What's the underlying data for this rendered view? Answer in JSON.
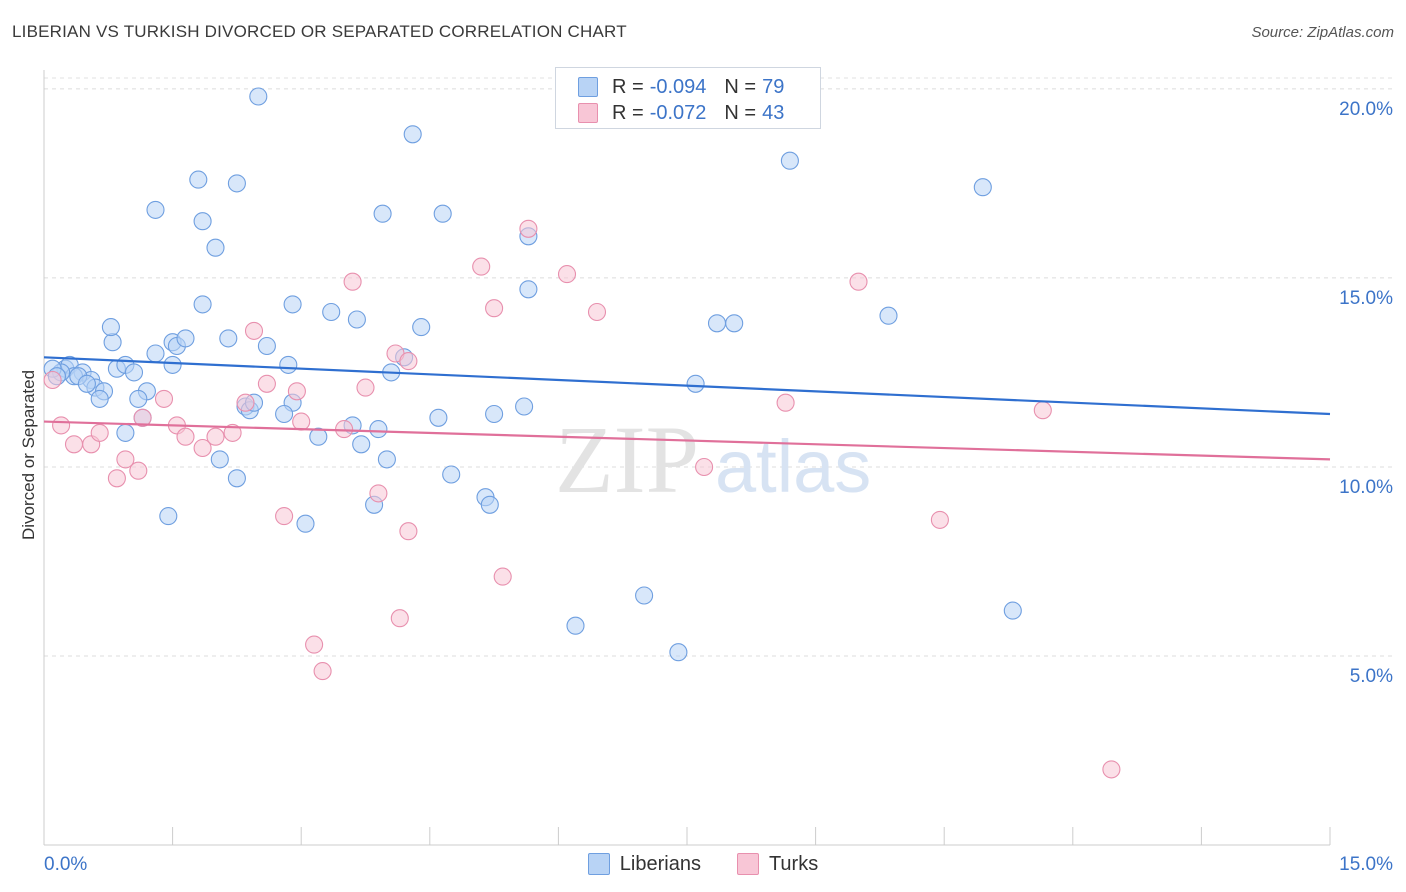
{
  "title": "LIBERIAN VS TURKISH DIVORCED OR SEPARATED CORRELATION CHART",
  "source": "Source: ZipAtlas.com",
  "watermark": {
    "zip": "ZIP",
    "atlas": "atlas"
  },
  "legend": {
    "series": [
      {
        "name": "Liberians",
        "r_label": "R =",
        "r_value": "-0.094",
        "n_label": "N =",
        "n_value": "79",
        "fill": "#b8d3f5",
        "stroke": "#6f9fe0"
      },
      {
        "name": "Turks",
        "r_label": "R =",
        "r_value": "-0.072",
        "n_label": "N =",
        "n_value": "43",
        "fill": "#f8c6d6",
        "stroke": "#e890ae"
      }
    ]
  },
  "chart_data": {
    "type": "scatter",
    "title": "LIBERIAN VS TURKISH DIVORCED OR SEPARATED CORRELATION CHART",
    "xlabel": "",
    "ylabel": "Divorced or Separated",
    "xlim": [
      0,
      15
    ],
    "ylim": [
      0,
      20.5
    ],
    "x_tick_labels": [
      "0.0%",
      "15.0%"
    ],
    "y_ticks": [
      5,
      10,
      15,
      20
    ],
    "y_tick_labels": [
      "5.0%",
      "10.0%",
      "15.0%",
      "20.0%"
    ],
    "grid": true,
    "series": [
      {
        "name": "Liberians",
        "color": "#6f9fe0",
        "trend": {
          "x": [
            0,
            15
          ],
          "y": [
            12.9,
            11.4
          ],
          "color": "#2f6fd0"
        },
        "points": [
          [
            0.25,
            12.6
          ],
          [
            0.3,
            12.7
          ],
          [
            0.45,
            12.5
          ],
          [
            0.55,
            12.3
          ],
          [
            0.6,
            12.1
          ],
          [
            0.7,
            12.0
          ],
          [
            0.35,
            12.4
          ],
          [
            0.2,
            12.5
          ],
          [
            0.65,
            11.8
          ],
          [
            0.85,
            12.6
          ],
          [
            0.95,
            12.7
          ],
          [
            1.05,
            12.5
          ],
          [
            1.2,
            12.0
          ],
          [
            1.1,
            11.8
          ],
          [
            1.15,
            11.3
          ],
          [
            0.95,
            10.9
          ],
          [
            0.8,
            13.3
          ],
          [
            0.78,
            13.7
          ],
          [
            1.3,
            13.0
          ],
          [
            1.5,
            13.3
          ],
          [
            1.55,
            13.2
          ],
          [
            1.65,
            13.4
          ],
          [
            1.5,
            12.7
          ],
          [
            1.45,
            8.7
          ],
          [
            1.3,
            16.8
          ],
          [
            1.8,
            17.6
          ],
          [
            1.85,
            16.5
          ],
          [
            2.0,
            15.8
          ],
          [
            2.25,
            17.5
          ],
          [
            2.5,
            19.8
          ],
          [
            1.85,
            14.3
          ],
          [
            2.15,
            13.4
          ],
          [
            2.35,
            11.6
          ],
          [
            2.4,
            11.5
          ],
          [
            2.45,
            11.7
          ],
          [
            2.05,
            10.2
          ],
          [
            2.25,
            9.7
          ],
          [
            2.6,
            13.2
          ],
          [
            2.85,
            12.7
          ],
          [
            2.9,
            14.3
          ],
          [
            2.9,
            11.7
          ],
          [
            2.8,
            11.4
          ],
          [
            3.2,
            10.8
          ],
          [
            3.05,
            8.5
          ],
          [
            3.35,
            14.1
          ],
          [
            3.6,
            11.1
          ],
          [
            3.7,
            10.6
          ],
          [
            3.65,
            13.9
          ],
          [
            3.9,
            11.0
          ],
          [
            4.0,
            10.2
          ],
          [
            4.05,
            12.5
          ],
          [
            4.2,
            12.9
          ],
          [
            3.85,
            9.0
          ],
          [
            3.95,
            16.7
          ],
          [
            4.3,
            18.8
          ],
          [
            4.4,
            13.7
          ],
          [
            4.6,
            11.3
          ],
          [
            4.65,
            16.7
          ],
          [
            4.75,
            9.8
          ],
          [
            5.15,
            9.2
          ],
          [
            5.2,
            9.0
          ],
          [
            5.25,
            11.4
          ],
          [
            5.6,
            11.6
          ],
          [
            5.65,
            16.1
          ],
          [
            5.65,
            14.7
          ],
          [
            6.2,
            5.8
          ],
          [
            7.0,
            6.6
          ],
          [
            7.4,
            5.1
          ],
          [
            7.6,
            12.2
          ],
          [
            7.85,
            13.8
          ],
          [
            8.05,
            13.8
          ],
          [
            8.7,
            18.1
          ],
          [
            9.85,
            14.0
          ],
          [
            10.95,
            17.4
          ],
          [
            11.3,
            6.2
          ],
          [
            0.1,
            12.6
          ],
          [
            0.15,
            12.4
          ],
          [
            0.4,
            12.4
          ],
          [
            0.5,
            12.2
          ]
        ]
      },
      {
        "name": "Turks",
        "color": "#e890ae",
        "trend": {
          "x": [
            0,
            15
          ],
          "y": [
            11.2,
            10.2
          ],
          "color": "#e0709a"
        },
        "points": [
          [
            0.1,
            12.3
          ],
          [
            0.2,
            11.1
          ],
          [
            0.35,
            10.6
          ],
          [
            0.55,
            10.6
          ],
          [
            0.65,
            10.9
          ],
          [
            0.85,
            9.7
          ],
          [
            0.95,
            10.2
          ],
          [
            1.1,
            9.9
          ],
          [
            1.15,
            11.3
          ],
          [
            1.4,
            11.8
          ],
          [
            1.55,
            11.1
          ],
          [
            1.65,
            10.8
          ],
          [
            1.85,
            10.5
          ],
          [
            2.0,
            10.8
          ],
          [
            2.2,
            10.9
          ],
          [
            2.35,
            11.7
          ],
          [
            2.45,
            13.6
          ],
          [
            2.6,
            12.2
          ],
          [
            2.8,
            8.7
          ],
          [
            2.95,
            12.0
          ],
          [
            3.0,
            11.2
          ],
          [
            3.15,
            5.3
          ],
          [
            3.25,
            4.6
          ],
          [
            3.5,
            11.0
          ],
          [
            3.6,
            14.9
          ],
          [
            3.75,
            12.1
          ],
          [
            3.9,
            9.3
          ],
          [
            4.1,
            13.0
          ],
          [
            4.15,
            6.0
          ],
          [
            4.25,
            12.8
          ],
          [
            4.25,
            8.3
          ],
          [
            5.1,
            15.3
          ],
          [
            5.25,
            14.2
          ],
          [
            5.35,
            7.1
          ],
          [
            5.65,
            16.3
          ],
          [
            6.1,
            15.1
          ],
          [
            6.45,
            14.1
          ],
          [
            7.7,
            10.0
          ],
          [
            8.65,
            11.7
          ],
          [
            9.5,
            14.9
          ],
          [
            10.45,
            8.6
          ],
          [
            11.65,
            11.5
          ],
          [
            12.45,
            2.0
          ]
        ]
      }
    ]
  }
}
